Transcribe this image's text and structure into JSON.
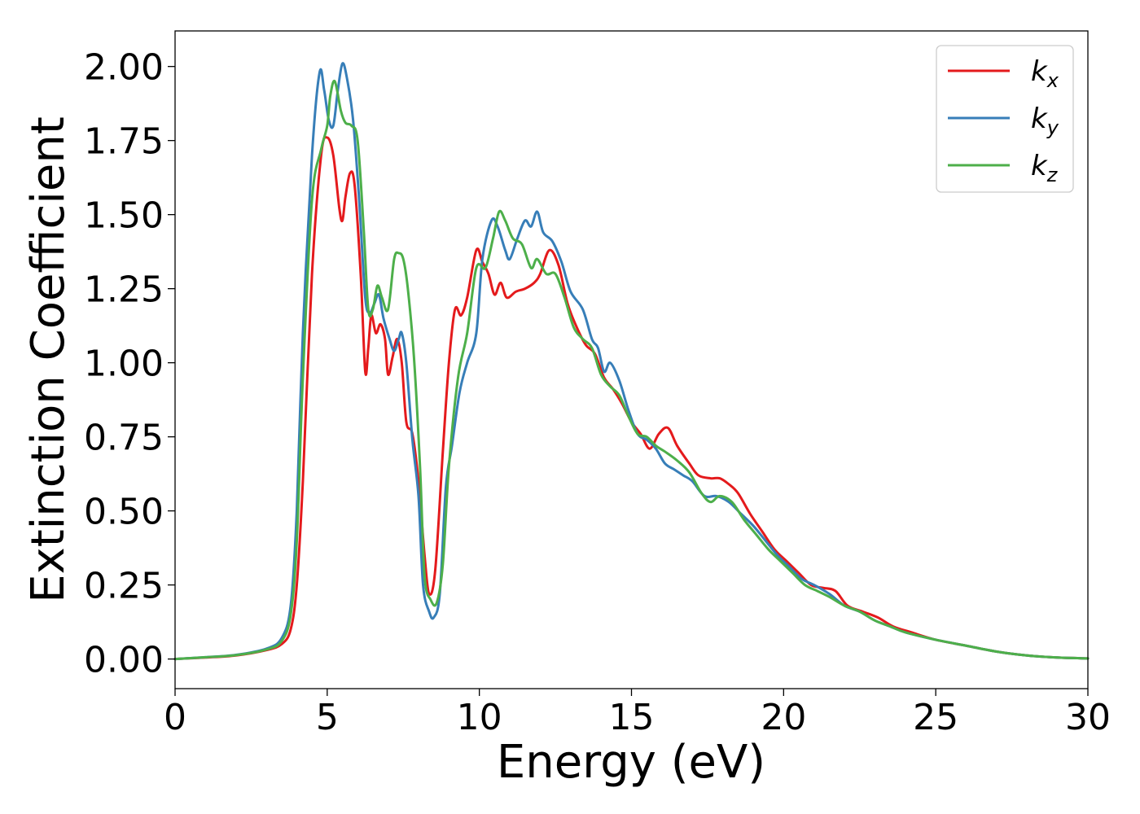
{
  "chart_data": {
    "type": "line",
    "title": "",
    "xlabel": "Energy (eV)",
    "ylabel": "Extinction Coefficient",
    "xlim": [
      0,
      30
    ],
    "ylim": [
      -0.1,
      2.12
    ],
    "xticks": [
      0,
      5,
      10,
      15,
      20,
      25,
      30
    ],
    "xtick_labels": [
      "0",
      "5",
      "10",
      "15",
      "20",
      "25",
      "30"
    ],
    "yticks": [
      0.0,
      0.25,
      0.5,
      0.75,
      1.0,
      1.25,
      1.5,
      1.75,
      2.0
    ],
    "ytick_labels": [
      "0.00",
      "0.25",
      "0.50",
      "0.75",
      "1.00",
      "1.25",
      "1.50",
      "1.75",
      "2.00"
    ],
    "grid": false,
    "legend_position": "top-right",
    "series": [
      {
        "name": "k",
        "subscript": "x",
        "color": "#e41a1c",
        "points": [
          [
            0,
            0.0
          ],
          [
            1,
            0.005
          ],
          [
            2,
            0.012
          ],
          [
            3,
            0.03
          ],
          [
            3.5,
            0.05
          ],
          [
            3.8,
            0.1
          ],
          [
            4.0,
            0.25
          ],
          [
            4.2,
            0.6
          ],
          [
            4.5,
            1.3
          ],
          [
            4.8,
            1.7
          ],
          [
            5.0,
            1.76
          ],
          [
            5.2,
            1.7
          ],
          [
            5.4,
            1.52
          ],
          [
            5.5,
            1.48
          ],
          [
            5.6,
            1.56
          ],
          [
            5.75,
            1.64
          ],
          [
            5.9,
            1.6
          ],
          [
            6.1,
            1.3
          ],
          [
            6.25,
            0.97
          ],
          [
            6.35,
            1.05
          ],
          [
            6.45,
            1.16
          ],
          [
            6.6,
            1.1
          ],
          [
            6.75,
            1.13
          ],
          [
            6.9,
            1.08
          ],
          [
            7.0,
            0.96
          ],
          [
            7.15,
            1.02
          ],
          [
            7.3,
            1.08
          ],
          [
            7.45,
            1.0
          ],
          [
            7.6,
            0.8
          ],
          [
            7.8,
            0.76
          ],
          [
            8.0,
            0.6
          ],
          [
            8.2,
            0.35
          ],
          [
            8.35,
            0.22
          ],
          [
            8.55,
            0.3
          ],
          [
            8.8,
            0.7
          ],
          [
            9.0,
            1.0
          ],
          [
            9.2,
            1.18
          ],
          [
            9.4,
            1.16
          ],
          [
            9.6,
            1.22
          ],
          [
            9.9,
            1.38
          ],
          [
            10.1,
            1.34
          ],
          [
            10.3,
            1.3
          ],
          [
            10.5,
            1.23
          ],
          [
            10.7,
            1.27
          ],
          [
            10.9,
            1.22
          ],
          [
            11.2,
            1.24
          ],
          [
            11.5,
            1.25
          ],
          [
            11.8,
            1.27
          ],
          [
            12.0,
            1.3
          ],
          [
            12.3,
            1.38
          ],
          [
            12.6,
            1.33
          ],
          [
            12.9,
            1.2
          ],
          [
            13.2,
            1.12
          ],
          [
            13.5,
            1.06
          ],
          [
            13.8,
            1.03
          ],
          [
            14.1,
            0.95
          ],
          [
            14.4,
            0.91
          ],
          [
            14.7,
            0.86
          ],
          [
            15.0,
            0.8
          ],
          [
            15.3,
            0.76
          ],
          [
            15.6,
            0.71
          ],
          [
            15.9,
            0.76
          ],
          [
            16.2,
            0.78
          ],
          [
            16.5,
            0.72
          ],
          [
            16.9,
            0.66
          ],
          [
            17.2,
            0.62
          ],
          [
            17.6,
            0.61
          ],
          [
            17.9,
            0.61
          ],
          [
            18.2,
            0.59
          ],
          [
            18.5,
            0.56
          ],
          [
            18.9,
            0.49
          ],
          [
            19.3,
            0.43
          ],
          [
            19.7,
            0.37
          ],
          [
            20.1,
            0.33
          ],
          [
            20.5,
            0.29
          ],
          [
            20.9,
            0.25
          ],
          [
            21.3,
            0.24
          ],
          [
            21.7,
            0.23
          ],
          [
            22.1,
            0.18
          ],
          [
            22.6,
            0.16
          ],
          [
            23.1,
            0.14
          ],
          [
            23.6,
            0.11
          ],
          [
            24.2,
            0.09
          ],
          [
            25.0,
            0.065
          ],
          [
            26.0,
            0.045
          ],
          [
            27.0,
            0.025
          ],
          [
            28.0,
            0.012
          ],
          [
            29.0,
            0.005
          ],
          [
            30.0,
            0.002
          ]
        ]
      },
      {
        "name": "k",
        "subscript": "y",
        "color": "#377eb8",
        "points": [
          [
            0,
            0.0
          ],
          [
            1,
            0.006
          ],
          [
            2,
            0.014
          ],
          [
            3,
            0.035
          ],
          [
            3.5,
            0.07
          ],
          [
            3.8,
            0.18
          ],
          [
            4.0,
            0.5
          ],
          [
            4.2,
            1.1
          ],
          [
            4.5,
            1.7
          ],
          [
            4.75,
            1.98
          ],
          [
            4.9,
            1.92
          ],
          [
            5.05,
            1.82
          ],
          [
            5.2,
            1.8
          ],
          [
            5.35,
            1.92
          ],
          [
            5.5,
            2.01
          ],
          [
            5.65,
            1.96
          ],
          [
            5.85,
            1.82
          ],
          [
            6.05,
            1.55
          ],
          [
            6.25,
            1.22
          ],
          [
            6.4,
            1.17
          ],
          [
            6.55,
            1.2
          ],
          [
            6.7,
            1.23
          ],
          [
            6.85,
            1.15
          ],
          [
            7.05,
            1.08
          ],
          [
            7.2,
            1.04
          ],
          [
            7.35,
            1.08
          ],
          [
            7.45,
            1.1
          ],
          [
            7.6,
            1.0
          ],
          [
            7.8,
            0.74
          ],
          [
            8.0,
            0.55
          ],
          [
            8.15,
            0.25
          ],
          [
            8.35,
            0.16
          ],
          [
            8.5,
            0.14
          ],
          [
            8.7,
            0.22
          ],
          [
            8.9,
            0.58
          ],
          [
            9.1,
            0.72
          ],
          [
            9.35,
            0.9
          ],
          [
            9.6,
            1.0
          ],
          [
            9.9,
            1.1
          ],
          [
            10.1,
            1.35
          ],
          [
            10.4,
            1.48
          ],
          [
            10.6,
            1.46
          ],
          [
            10.85,
            1.38
          ],
          [
            11.0,
            1.35
          ],
          [
            11.25,
            1.42
          ],
          [
            11.5,
            1.48
          ],
          [
            11.7,
            1.46
          ],
          [
            11.9,
            1.51
          ],
          [
            12.1,
            1.44
          ],
          [
            12.4,
            1.41
          ],
          [
            12.7,
            1.34
          ],
          [
            13.0,
            1.24
          ],
          [
            13.4,
            1.18
          ],
          [
            13.7,
            1.08
          ],
          [
            13.9,
            1.05
          ],
          [
            14.1,
            0.97
          ],
          [
            14.3,
            1.0
          ],
          [
            14.6,
            0.94
          ],
          [
            14.9,
            0.84
          ],
          [
            15.2,
            0.76
          ],
          [
            15.5,
            0.74
          ],
          [
            15.8,
            0.71
          ],
          [
            16.1,
            0.66
          ],
          [
            16.4,
            0.64
          ],
          [
            16.7,
            0.62
          ],
          [
            17.0,
            0.6
          ],
          [
            17.4,
            0.55
          ],
          [
            17.8,
            0.55
          ],
          [
            18.2,
            0.53
          ],
          [
            18.6,
            0.49
          ],
          [
            19.0,
            0.45
          ],
          [
            19.4,
            0.4
          ],
          [
            19.8,
            0.35
          ],
          [
            20.2,
            0.31
          ],
          [
            20.6,
            0.27
          ],
          [
            21.0,
            0.25
          ],
          [
            21.5,
            0.22
          ],
          [
            22.0,
            0.18
          ],
          [
            22.5,
            0.16
          ],
          [
            23.0,
            0.13
          ],
          [
            23.5,
            0.11
          ],
          [
            24.0,
            0.09
          ],
          [
            25.0,
            0.065
          ],
          [
            26.0,
            0.045
          ],
          [
            27.0,
            0.025
          ],
          [
            28.0,
            0.012
          ],
          [
            29.0,
            0.005
          ],
          [
            30.0,
            0.002
          ]
        ]
      },
      {
        "name": "k",
        "subscript": "z",
        "color": "#4daf4a",
        "points": [
          [
            0,
            0.0
          ],
          [
            1,
            0.006
          ],
          [
            2,
            0.013
          ],
          [
            3,
            0.032
          ],
          [
            3.5,
            0.06
          ],
          [
            3.8,
            0.15
          ],
          [
            4.0,
            0.4
          ],
          [
            4.2,
            0.95
          ],
          [
            4.5,
            1.55
          ],
          [
            4.8,
            1.72
          ],
          [
            5.0,
            1.8
          ],
          [
            5.1,
            1.9
          ],
          [
            5.25,
            1.95
          ],
          [
            5.45,
            1.85
          ],
          [
            5.6,
            1.81
          ],
          [
            5.8,
            1.8
          ],
          [
            6.0,
            1.75
          ],
          [
            6.2,
            1.45
          ],
          [
            6.35,
            1.18
          ],
          [
            6.5,
            1.18
          ],
          [
            6.65,
            1.26
          ],
          [
            6.8,
            1.22
          ],
          [
            7.0,
            1.18
          ],
          [
            7.2,
            1.35
          ],
          [
            7.35,
            1.37
          ],
          [
            7.5,
            1.35
          ],
          [
            7.65,
            1.25
          ],
          [
            7.85,
            1.02
          ],
          [
            8.05,
            0.65
          ],
          [
            8.2,
            0.28
          ],
          [
            8.4,
            0.2
          ],
          [
            8.6,
            0.19
          ],
          [
            8.8,
            0.32
          ],
          [
            9.0,
            0.65
          ],
          [
            9.3,
            0.95
          ],
          [
            9.6,
            1.1
          ],
          [
            9.9,
            1.32
          ],
          [
            10.2,
            1.32
          ],
          [
            10.45,
            1.42
          ],
          [
            10.65,
            1.51
          ],
          [
            10.85,
            1.48
          ],
          [
            11.1,
            1.42
          ],
          [
            11.4,
            1.4
          ],
          [
            11.7,
            1.32
          ],
          [
            11.9,
            1.35
          ],
          [
            12.2,
            1.3
          ],
          [
            12.5,
            1.3
          ],
          [
            12.8,
            1.22
          ],
          [
            13.1,
            1.12
          ],
          [
            13.4,
            1.08
          ],
          [
            13.7,
            1.05
          ],
          [
            14.0,
            0.96
          ],
          [
            14.3,
            0.92
          ],
          [
            14.6,
            0.89
          ],
          [
            14.9,
            0.82
          ],
          [
            15.2,
            0.76
          ],
          [
            15.5,
            0.75
          ],
          [
            15.8,
            0.72
          ],
          [
            16.1,
            0.7
          ],
          [
            16.5,
            0.67
          ],
          [
            16.9,
            0.63
          ],
          [
            17.3,
            0.56
          ],
          [
            17.6,
            0.53
          ],
          [
            17.9,
            0.55
          ],
          [
            18.3,
            0.53
          ],
          [
            18.7,
            0.47
          ],
          [
            19.1,
            0.42
          ],
          [
            19.5,
            0.37
          ],
          [
            19.9,
            0.33
          ],
          [
            20.3,
            0.29
          ],
          [
            20.7,
            0.25
          ],
          [
            21.1,
            0.23
          ],
          [
            21.5,
            0.21
          ],
          [
            22.0,
            0.18
          ],
          [
            22.5,
            0.16
          ],
          [
            23.0,
            0.13
          ],
          [
            23.5,
            0.11
          ],
          [
            24.0,
            0.09
          ],
          [
            25.0,
            0.065
          ],
          [
            26.0,
            0.045
          ],
          [
            27.0,
            0.025
          ],
          [
            28.0,
            0.012
          ],
          [
            29.0,
            0.005
          ],
          [
            30.0,
            0.002
          ]
        ]
      }
    ]
  }
}
